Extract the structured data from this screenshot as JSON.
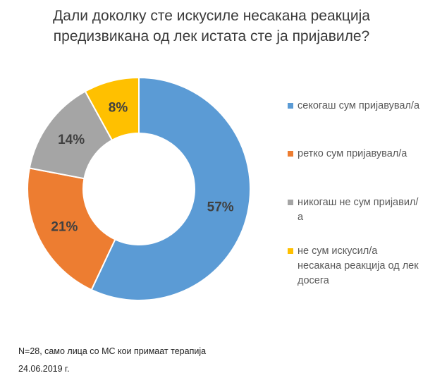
{
  "title": {
    "line1": "Дали доколку сте искусиле несакана реакција",
    "line2": "предизвикана од лек истата сте ја пријавиле?"
  },
  "chart_data": {
    "type": "pie",
    "donut": true,
    "categories": [
      "секогаш сум пријавувал/а",
      "ретко сум пријавувал/а",
      "никогаш не сум пријавил/а",
      "не сум искусил/а несакана реакција од лек досега"
    ],
    "values": [
      57,
      21,
      14,
      8
    ],
    "value_labels": [
      "57%",
      "21%",
      "14%",
      "8%"
    ],
    "colors": [
      "#5b9bd5",
      "#ed7d31",
      "#a5a5a5",
      "#ffc000"
    ],
    "legend_placement": "right"
  },
  "legend": {
    "items": [
      {
        "label": "секогаш сум пријавувал/а",
        "color": "#5b9bd5"
      },
      {
        "label": "ретко сум пријавувал/а",
        "color": "#ed7d31"
      },
      {
        "label": "никогаш не сум пријавил/а",
        "color": "#a5a5a5"
      },
      {
        "label": "не сум искусил/а несакана реакција од лек досега",
        "color": "#ffc000"
      }
    ]
  },
  "notes": {
    "sample": "N=28, само лица со МС кои примаат терапија",
    "date": "24.06.2019 г."
  }
}
